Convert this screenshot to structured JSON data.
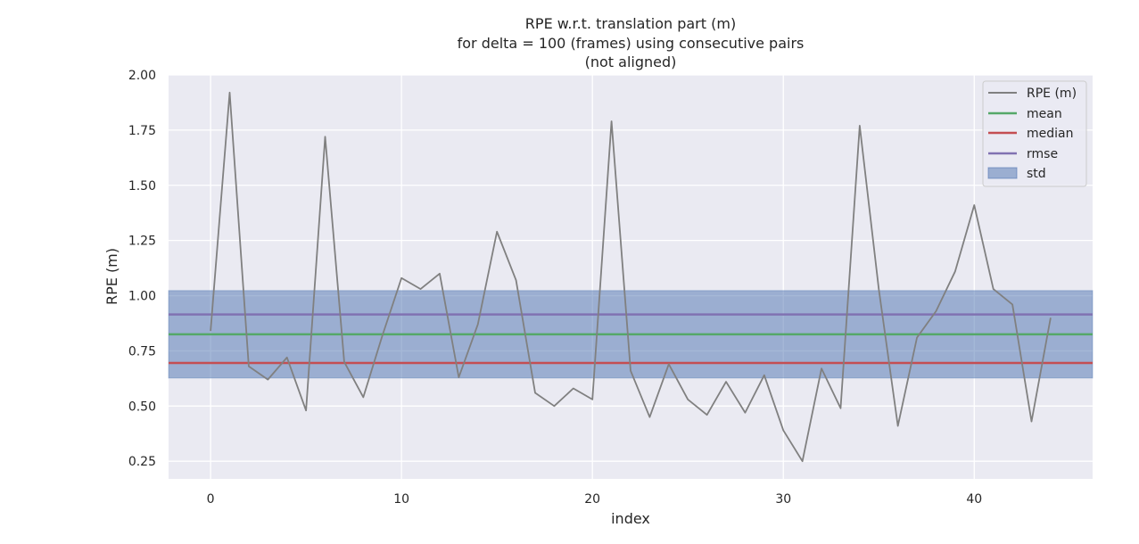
{
  "chart_data": {
    "type": "line",
    "title": [
      "RPE w.r.t. translation part (m)",
      "for delta = 100 (frames) using consecutive pairs",
      "(not aligned)"
    ],
    "xlabel": "index",
    "ylabel": "RPE (m)",
    "xlim": [
      -2.2,
      46.2
    ],
    "ylim": [
      0.17,
      2.0
    ],
    "xticks": [
      0,
      10,
      20,
      30,
      40
    ],
    "yticks": [
      0.25,
      0.5,
      0.75,
      1.0,
      1.25,
      1.5,
      1.75,
      2.0
    ],
    "ytick_labels": [
      "0.25",
      "0.50",
      "0.75",
      "1.00",
      "1.25",
      "1.50",
      "1.75",
      "2.00"
    ],
    "grid": true,
    "legend_position": "top-right",
    "series": [
      {
        "name": "RPE (m)",
        "color": "#808080",
        "x": [
          0,
          1,
          2,
          3,
          4,
          5,
          6,
          7,
          8,
          9,
          10,
          11,
          12,
          13,
          14,
          15,
          16,
          17,
          18,
          19,
          20,
          21,
          22,
          23,
          24,
          25,
          26,
          27,
          28,
          29,
          30,
          31,
          32,
          33,
          34,
          35,
          36,
          37,
          38,
          39,
          40,
          41,
          42,
          43,
          44
        ],
        "y": [
          0.84,
          1.92,
          0.68,
          0.62,
          0.72,
          0.48,
          1.72,
          0.7,
          0.54,
          0.82,
          1.08,
          1.03,
          1.1,
          0.63,
          0.87,
          1.29,
          1.07,
          0.56,
          0.5,
          0.58,
          0.53,
          1.79,
          0.66,
          0.45,
          0.69,
          0.53,
          0.46,
          0.61,
          0.47,
          0.64,
          0.39,
          0.25,
          0.67,
          0.49,
          1.77,
          1.03,
          0.41,
          0.81,
          0.93,
          1.11,
          1.41,
          1.03,
          0.96,
          0.43,
          0.9
        ]
      }
    ],
    "stats": {
      "mean": {
        "name": "mean",
        "value": 0.825,
        "color": "#55a868"
      },
      "median": {
        "name": "median",
        "value": 0.695,
        "color": "#c44e52"
      },
      "rmse": {
        "name": "rmse",
        "value": 0.915,
        "color": "#8172b2"
      },
      "std": {
        "name": "std",
        "low": 0.627,
        "high": 1.023,
        "color": "#4c72b0"
      }
    }
  }
}
